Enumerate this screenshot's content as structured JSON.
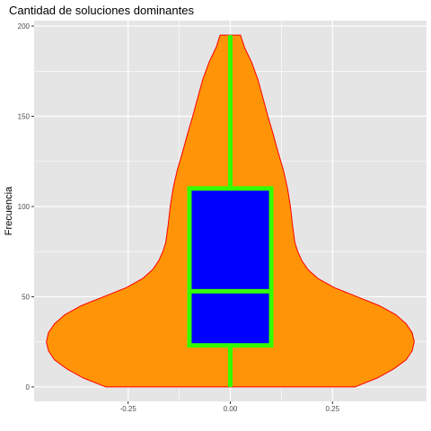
{
  "chart_data": {
    "type": "violin",
    "title": "Cantidad de soluciones dominantes",
    "xlabel": "",
    "ylabel": "Frecuencia",
    "xlim": [
      -0.48,
      0.48
    ],
    "ylim": [
      -8,
      203
    ],
    "x_ticks": [
      -0.25,
      0.0,
      0.25
    ],
    "x_tick_labels": [
      "-0.25",
      "0.00",
      "0.25"
    ],
    "y_ticks": [
      0,
      50,
      100,
      150,
      200
    ],
    "y_tick_labels": [
      "0",
      "50",
      "100",
      "150",
      "200"
    ],
    "violin": {
      "fill": "#ff9408",
      "outline": "#ff0000",
      "profile": [
        {
          "y": 0,
          "half_width": 0.305
        },
        {
          "y": 5,
          "half_width": 0.36
        },
        {
          "y": 10,
          "half_width": 0.4
        },
        {
          "y": 15,
          "half_width": 0.43
        },
        {
          "y": 20,
          "half_width": 0.445
        },
        {
          "y": 25,
          "half_width": 0.45
        },
        {
          "y": 30,
          "half_width": 0.445
        },
        {
          "y": 35,
          "half_width": 0.43
        },
        {
          "y": 40,
          "half_width": 0.405
        },
        {
          "y": 45,
          "half_width": 0.365
        },
        {
          "y": 50,
          "half_width": 0.31
        },
        {
          "y": 55,
          "half_width": 0.255
        },
        {
          "y": 60,
          "half_width": 0.215
        },
        {
          "y": 65,
          "half_width": 0.19
        },
        {
          "y": 70,
          "half_width": 0.175
        },
        {
          "y": 75,
          "half_width": 0.165
        },
        {
          "y": 80,
          "half_width": 0.158
        },
        {
          "y": 90,
          "half_width": 0.152
        },
        {
          "y": 100,
          "half_width": 0.147
        },
        {
          "y": 110,
          "half_width": 0.14
        },
        {
          "y": 120,
          "half_width": 0.13
        },
        {
          "y": 130,
          "half_width": 0.117
        },
        {
          "y": 140,
          "half_width": 0.105
        },
        {
          "y": 150,
          "half_width": 0.092
        },
        {
          "y": 160,
          "half_width": 0.08
        },
        {
          "y": 170,
          "half_width": 0.068
        },
        {
          "y": 180,
          "half_width": 0.052
        },
        {
          "y": 188,
          "half_width": 0.035
        },
        {
          "y": 195,
          "half_width": 0.025
        }
      ]
    },
    "boxplot": {
      "fill": "#0000ff",
      "outline": "#33ff00",
      "x_half_width": 0.1,
      "min": 0,
      "q1": 23,
      "median": 53,
      "q3": 110,
      "max": 195
    },
    "grid": true,
    "panel_background": "#e5e5e5",
    "grid_color": "#ffffff"
  }
}
